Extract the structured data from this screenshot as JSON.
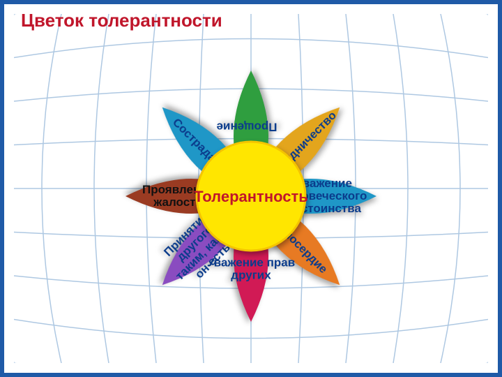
{
  "title": "Цветок  толерантности",
  "title_color": "#c0162b",
  "frame_color": "#1f5aa7",
  "background_color": "#ffffff",
  "grid_color": "#2d6fb3",
  "core": {
    "label": "Толерантность",
    "fill": "#ffe600",
    "stroke": "#f4c400",
    "text_color": "#c0162b"
  },
  "petals": [
    {
      "label": "Прощение",
      "angle": -90,
      "fill": "#2f9e3f",
      "text_color": "#0b3c8c",
      "mode": "vertical"
    },
    {
      "label": "Сотрудничество",
      "angle": -45,
      "fill": "#e3a51d",
      "text_color": "#0b3c8c",
      "mode": "along"
    },
    {
      "label": "Уважение человеческого достоинства",
      "angle": 0,
      "fill": "#1f97c7",
      "text_color": "#0b3c8c",
      "mode": "stack"
    },
    {
      "label": "Милосердие",
      "angle": 45,
      "fill": "#e77a23",
      "text_color": "#0b3c8c",
      "mode": "along"
    },
    {
      "label": "Уважение прав других",
      "angle": 90,
      "fill": "#d11a55",
      "text_color": "#0b3c8c",
      "mode": "stack-upright"
    },
    {
      "label": "Принятие другого таким, какой он есть",
      "angle": 135,
      "fill": "#8a4cc0",
      "text_color": "#0b3c8c",
      "mode": "stack"
    },
    {
      "label": "Проявление жалости",
      "angle": 180,
      "fill": "#9a3b22",
      "text_color": "#111111",
      "mode": "stack-upright"
    },
    {
      "label": "Сострадание",
      "angle": 225,
      "fill": "#1f97c7",
      "text_color": "#0b3c8c",
      "mode": "along"
    }
  ],
  "petal_length": 180,
  "petal_width": 100,
  "core_radius": 78
}
